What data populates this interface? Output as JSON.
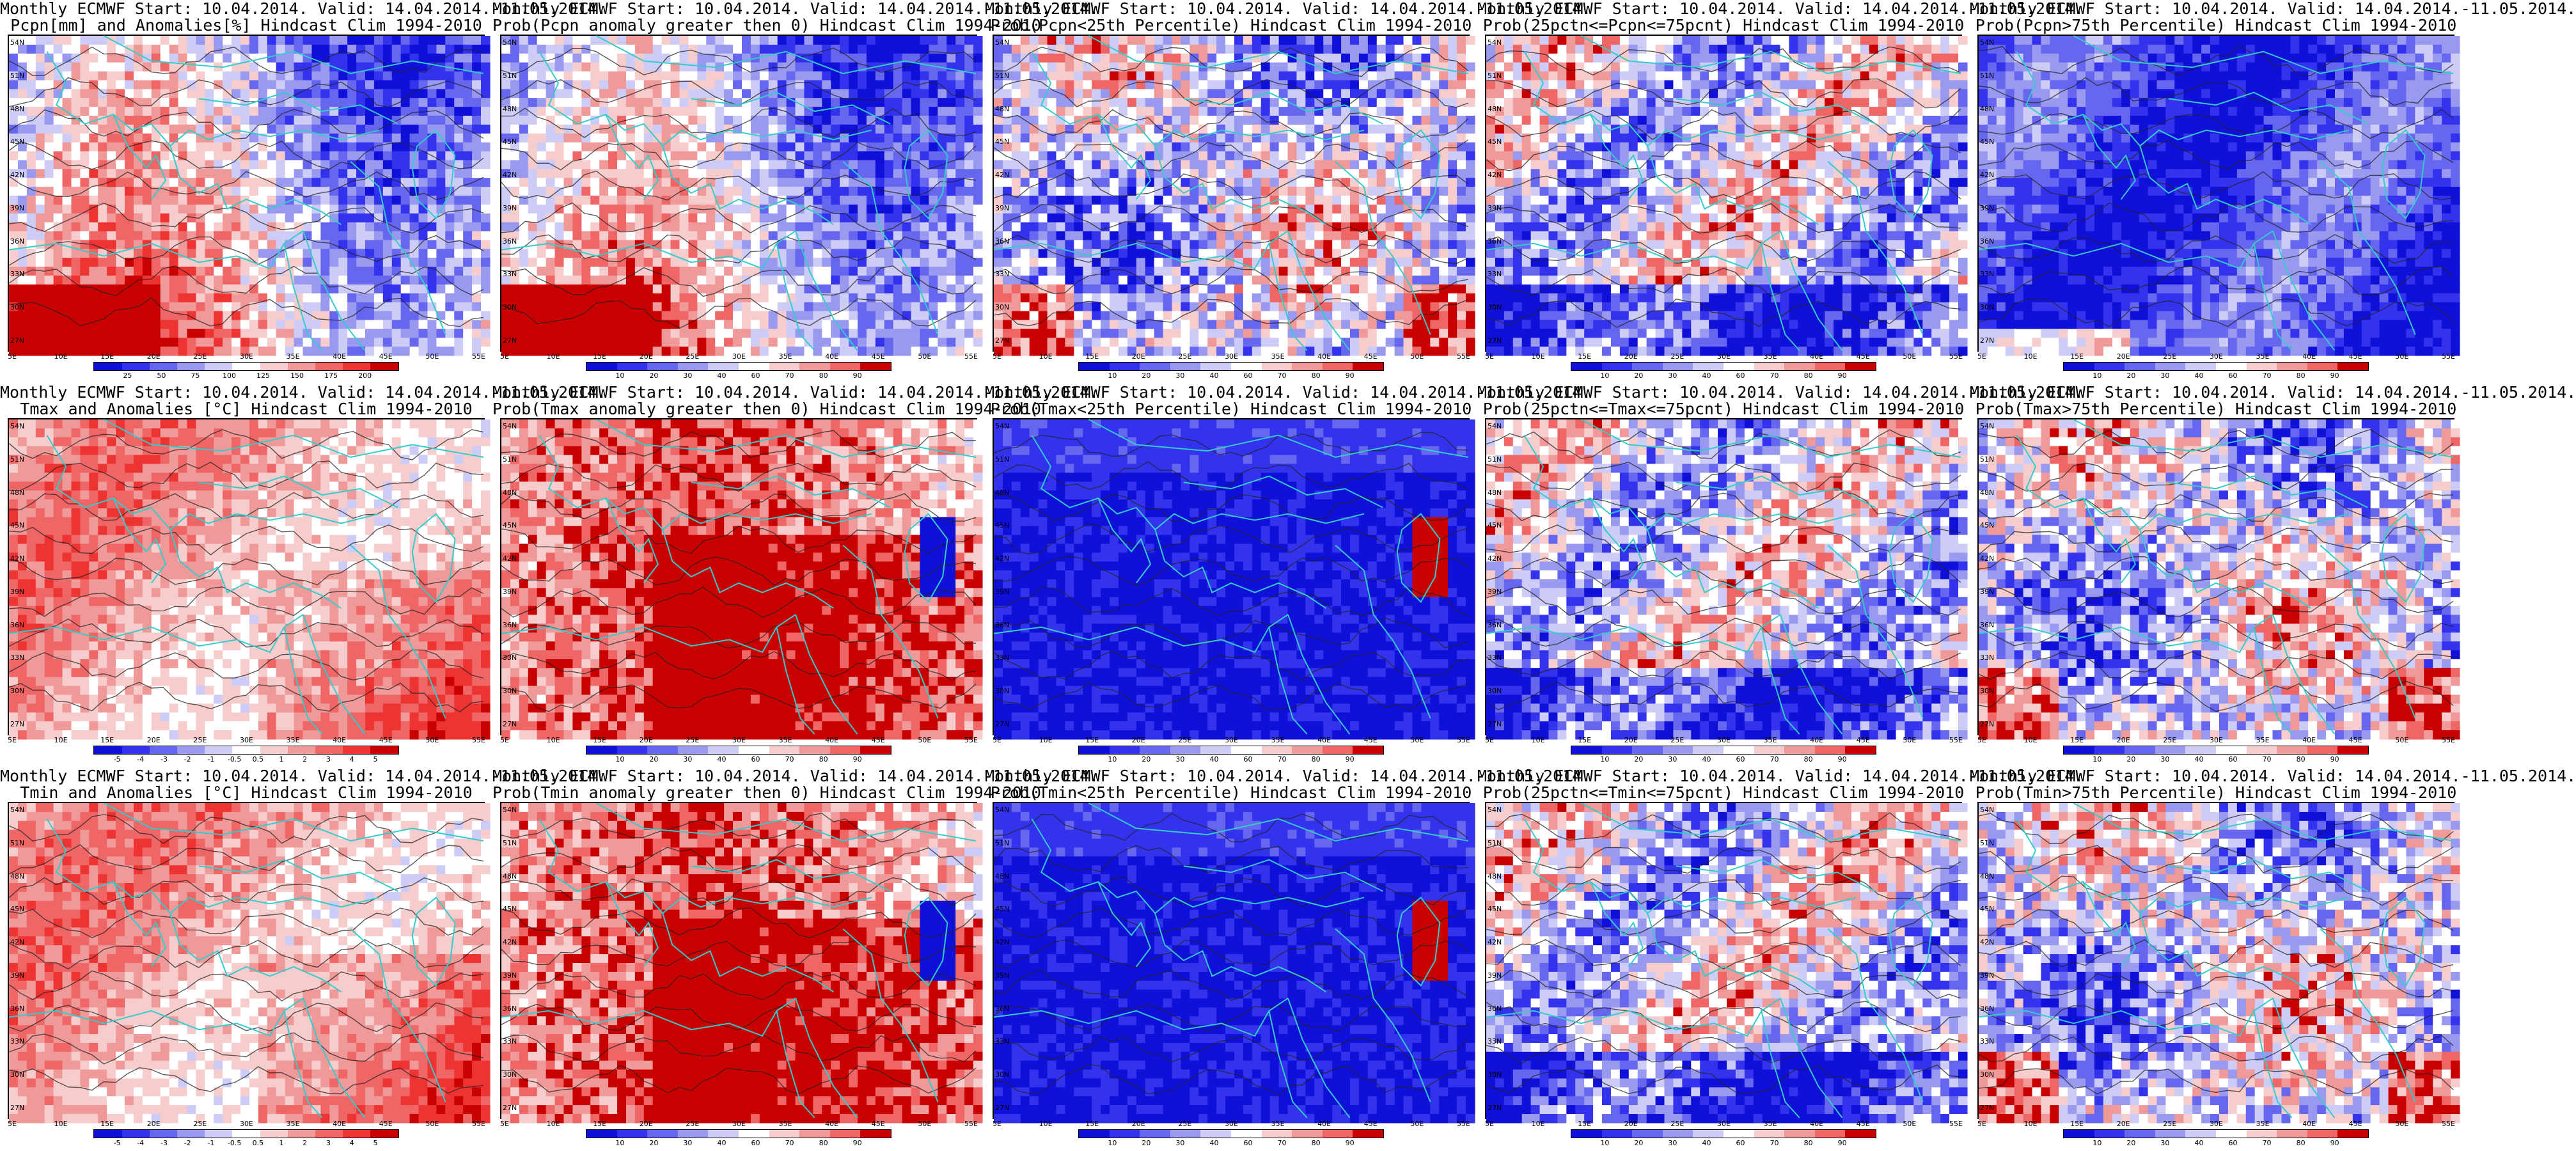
{
  "palettes": {
    "blue_red": [
      "#1010d8",
      "#3333ee",
      "#6666ee",
      "#9999f0",
      "#ccccf6",
      "#ffffff",
      "#f6cccc",
      "#f09999",
      "#ee6666",
      "#ee3333",
      "#c80000"
    ],
    "prob": [
      "#1010d8",
      "#3333ee",
      "#6666ee",
      "#9999f0",
      "#ccccf6",
      "#ffffff",
      "#f6cccc",
      "#f09999",
      "#ee6666",
      "#c80000"
    ],
    "coast": "#33cccc",
    "contour": "#222222"
  },
  "lat_labels": [
    "54N",
    "51N",
    "48N",
    "45N",
    "42N",
    "39N",
    "36N",
    "33N",
    "30N",
    "27N"
  ],
  "lon_labels": [
    "5E",
    "10E",
    "15E",
    "20E",
    "25E",
    "30E",
    "35E",
    "40E",
    "45E",
    "50E",
    "55E"
  ],
  "rows": [
    {
      "panels": [
        {
          "title1": "Monthly ECMWF Start: 10.04.2014. Valid: 14.04.2014.-11.05.2014.",
          "title2": "Pcpn[mm] and Anomalies[%] Hindcast Clim 1994-2010",
          "palette": "blue_red",
          "bias": "low",
          "ticks": [
            "25",
            "50",
            "75",
            "100",
            "125",
            "150",
            "175",
            "200"
          ]
        },
        {
          "title1": "Monthly ECMWF Start: 10.04.2014. Valid: 14.04.2014.-11.05.2014.",
          "title2": "Prob(Pcpn anomaly greater then 0) Hindcast Clim 1994-2010",
          "palette": "prob",
          "bias": "low",
          "ticks": [
            "10",
            "20",
            "30",
            "40",
            "60",
            "70",
            "80",
            "90"
          ]
        },
        {
          "title1": "Monthly ECMWF Start: 10.04.2014. Valid: 14.04.2014.-11.05.2014.",
          "title2": "Prob(Pcpn<25th Percentile) Hindcast Clim 1994-2010",
          "palette": "prob",
          "bias": "mixed",
          "ticks": [
            "10",
            "20",
            "30",
            "40",
            "60",
            "70",
            "80",
            "90"
          ]
        },
        {
          "title1": "Monthly ECMWF Start: 10.04.2014. Valid: 14.04.2014.-11.05.2014.",
          "title2": "Prob(25pctn<=Pcpn<=75pcnt) Hindcast Clim 1994-2010",
          "palette": "prob",
          "bias": "neutral",
          "ticks": [
            "10",
            "20",
            "30",
            "40",
            "60",
            "70",
            "80",
            "90"
          ]
        },
        {
          "title1": "Monthly ECMWF Start: 10.04.2014. Valid: 14.04.2014.-11.05.2014.",
          "title2": "Prob(Pcpn>75th Percentile) Hindcast Clim 1994-2010",
          "palette": "prob",
          "bias": "verylow",
          "ticks": [
            "10",
            "20",
            "30",
            "40",
            "60",
            "70",
            "80",
            "90"
          ]
        }
      ]
    },
    {
      "panels": [
        {
          "title1": "Monthly ECMWF Start: 10.04.2014. Valid: 14.04.2014.-11.05.2014.",
          "title2": "Tmax and Anomalies [°C] Hindcast Clim 1994-2010",
          "palette": "blue_red",
          "bias": "warm",
          "ticks": [
            "-5",
            "-4",
            "-3",
            "-2",
            "-1",
            "-0.5",
            "0.5",
            "1",
            "2",
            "3",
            "4",
            "5"
          ]
        },
        {
          "title1": "Monthly ECMWF Start: 10.04.2014. Valid: 14.04.2014.-11.05.2014.",
          "title2": "Prob(Tmax anomaly greater then 0) Hindcast Clim 1994-2010",
          "palette": "prob",
          "bias": "hot",
          "ticks": [
            "10",
            "20",
            "30",
            "40",
            "60",
            "70",
            "80",
            "90"
          ]
        },
        {
          "title1": "Monthly ECMWF Start: 10.04.2014. Valid: 14.04.2014.-11.05.2014.",
          "title2": "Prob(Tmax<25th Percentile) Hindcast Clim 1994-2010",
          "palette": "prob",
          "bias": "cold",
          "ticks": [
            "10",
            "20",
            "30",
            "40",
            "60",
            "70",
            "80",
            "90"
          ]
        },
        {
          "title1": "Monthly ECMWF Start: 10.04.2014. Valid: 14.04.2014.-11.05.2014.",
          "title2": "Prob(25pctn<=Tmax<=75pcnt) Hindcast Clim 1994-2010",
          "palette": "prob",
          "bias": "neutral",
          "ticks": [
            "10",
            "20",
            "30",
            "40",
            "60",
            "70",
            "80",
            "90"
          ]
        },
        {
          "title1": "Monthly ECMWF Start: 10.04.2014. Valid: 14.04.2014.-11.05.2014.",
          "title2": "Prob(Tmax>75th Percentile) Hindcast Clim 1994-2010",
          "palette": "prob",
          "bias": "mixed",
          "ticks": [
            "10",
            "20",
            "30",
            "40",
            "60",
            "70",
            "80",
            "90"
          ]
        }
      ]
    },
    {
      "panels": [
        {
          "title1": "Monthly ECMWF Start: 10.04.2014. Valid: 14.04.2014.-11.05.2014.",
          "title2": "Tmin and Anomalies [°C] Hindcast Clim 1994-2010",
          "palette": "blue_red",
          "bias": "warm",
          "ticks": [
            "-5",
            "-4",
            "-3",
            "-2",
            "-1",
            "-0.5",
            "0.5",
            "1",
            "2",
            "3",
            "4",
            "5"
          ]
        },
        {
          "title1": "Monthly ECMWF Start: 10.04.2014. Valid: 14.04.2014.-11.05.2014.",
          "title2": "Prob(Tmin anomaly greater then 0) Hindcast Clim 1994-2010",
          "palette": "prob",
          "bias": "hot",
          "ticks": [
            "10",
            "20",
            "30",
            "40",
            "60",
            "70",
            "80",
            "90"
          ]
        },
        {
          "title1": "Monthly ECMWF Start: 10.04.2014. Valid: 14.04.2014.-11.05.2014.",
          "title2": "Prob(Tmin<25th Percentile) Hindcast Clim 1994-2010",
          "palette": "prob",
          "bias": "cold",
          "ticks": [
            "10",
            "20",
            "30",
            "40",
            "60",
            "70",
            "80",
            "90"
          ]
        },
        {
          "title1": "Monthly ECMWF Start: 10.04.2014. Valid: 14.04.2014.-11.05.2014.",
          "title2": "Prob(25pctn<=Tmin<=75pcnt) Hindcast Clim 1994-2010",
          "palette": "prob",
          "bias": "neutral",
          "ticks": [
            "10",
            "20",
            "30",
            "40",
            "60",
            "70",
            "80",
            "90"
          ]
        },
        {
          "title1": "Monthly ECMWF Start: 10.04.2014. Valid: 14.04.2014.-11.05.2014.",
          "title2": "Prob(Tmin>75th Percentile) Hindcast Clim 1994-2010",
          "palette": "prob",
          "bias": "mixed",
          "ticks": [
            "10",
            "20",
            "30",
            "40",
            "60",
            "70",
            "80",
            "90"
          ]
        }
      ]
    }
  ]
}
